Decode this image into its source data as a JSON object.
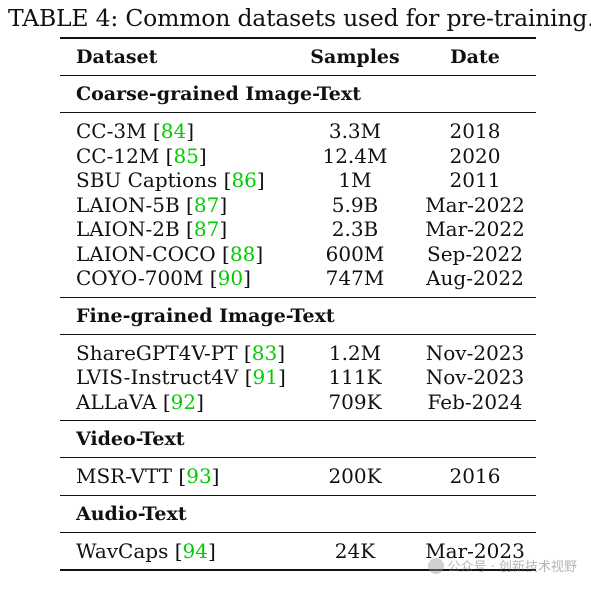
{
  "caption": "TABLE 4: Common datasets used for pre-training.",
  "columns": {
    "dataset": "Dataset",
    "samples": "Samples",
    "date": "Date"
  },
  "sections": [
    {
      "title": "Coarse-grained Image-Text",
      "rows": [
        {
          "name": "CC-3M",
          "ref": "84",
          "samples": "3.3M",
          "date": "2018"
        },
        {
          "name": "CC-12M",
          "ref": "85",
          "samples": "12.4M",
          "date": "2020"
        },
        {
          "name": "SBU Captions",
          "ref": "86",
          "samples": "1M",
          "date": "2011"
        },
        {
          "name": "LAION-5B",
          "ref": "87",
          "samples": "5.9B",
          "date": "Mar-2022"
        },
        {
          "name": "LAION-2B",
          "ref": "87",
          "samples": "2.3B",
          "date": "Mar-2022"
        },
        {
          "name": "LAION-COCO",
          "ref": "88",
          "samples": "600M",
          "date": "Sep-2022"
        },
        {
          "name": "COYO-700M",
          "ref": "90",
          "samples": "747M",
          "date": "Aug-2022"
        }
      ]
    },
    {
      "title": "Fine-grained Image-Text",
      "rows": [
        {
          "name": "ShareGPT4V-PT",
          "ref": "83",
          "samples": "1.2M",
          "date": "Nov-2023"
        },
        {
          "name": "LVIS-Instruct4V",
          "ref": "91",
          "samples": "111K",
          "date": "Nov-2023"
        },
        {
          "name": "ALLaVA",
          "ref": "92",
          "samples": "709K",
          "date": "Feb-2024"
        }
      ]
    },
    {
      "title": "Video-Text",
      "rows": [
        {
          "name": "MSR-VTT",
          "ref": "93",
          "samples": "200K",
          "date": "2016"
        }
      ]
    },
    {
      "title": "Audio-Text",
      "rows": [
        {
          "name": "WavCaps",
          "ref": "94",
          "samples": "24K",
          "date": "Mar-2023"
        }
      ]
    }
  ],
  "watermark": "公众号 · 创新技术视野",
  "colors": {
    "citation": "#00cc00",
    "text": "#111111"
  }
}
